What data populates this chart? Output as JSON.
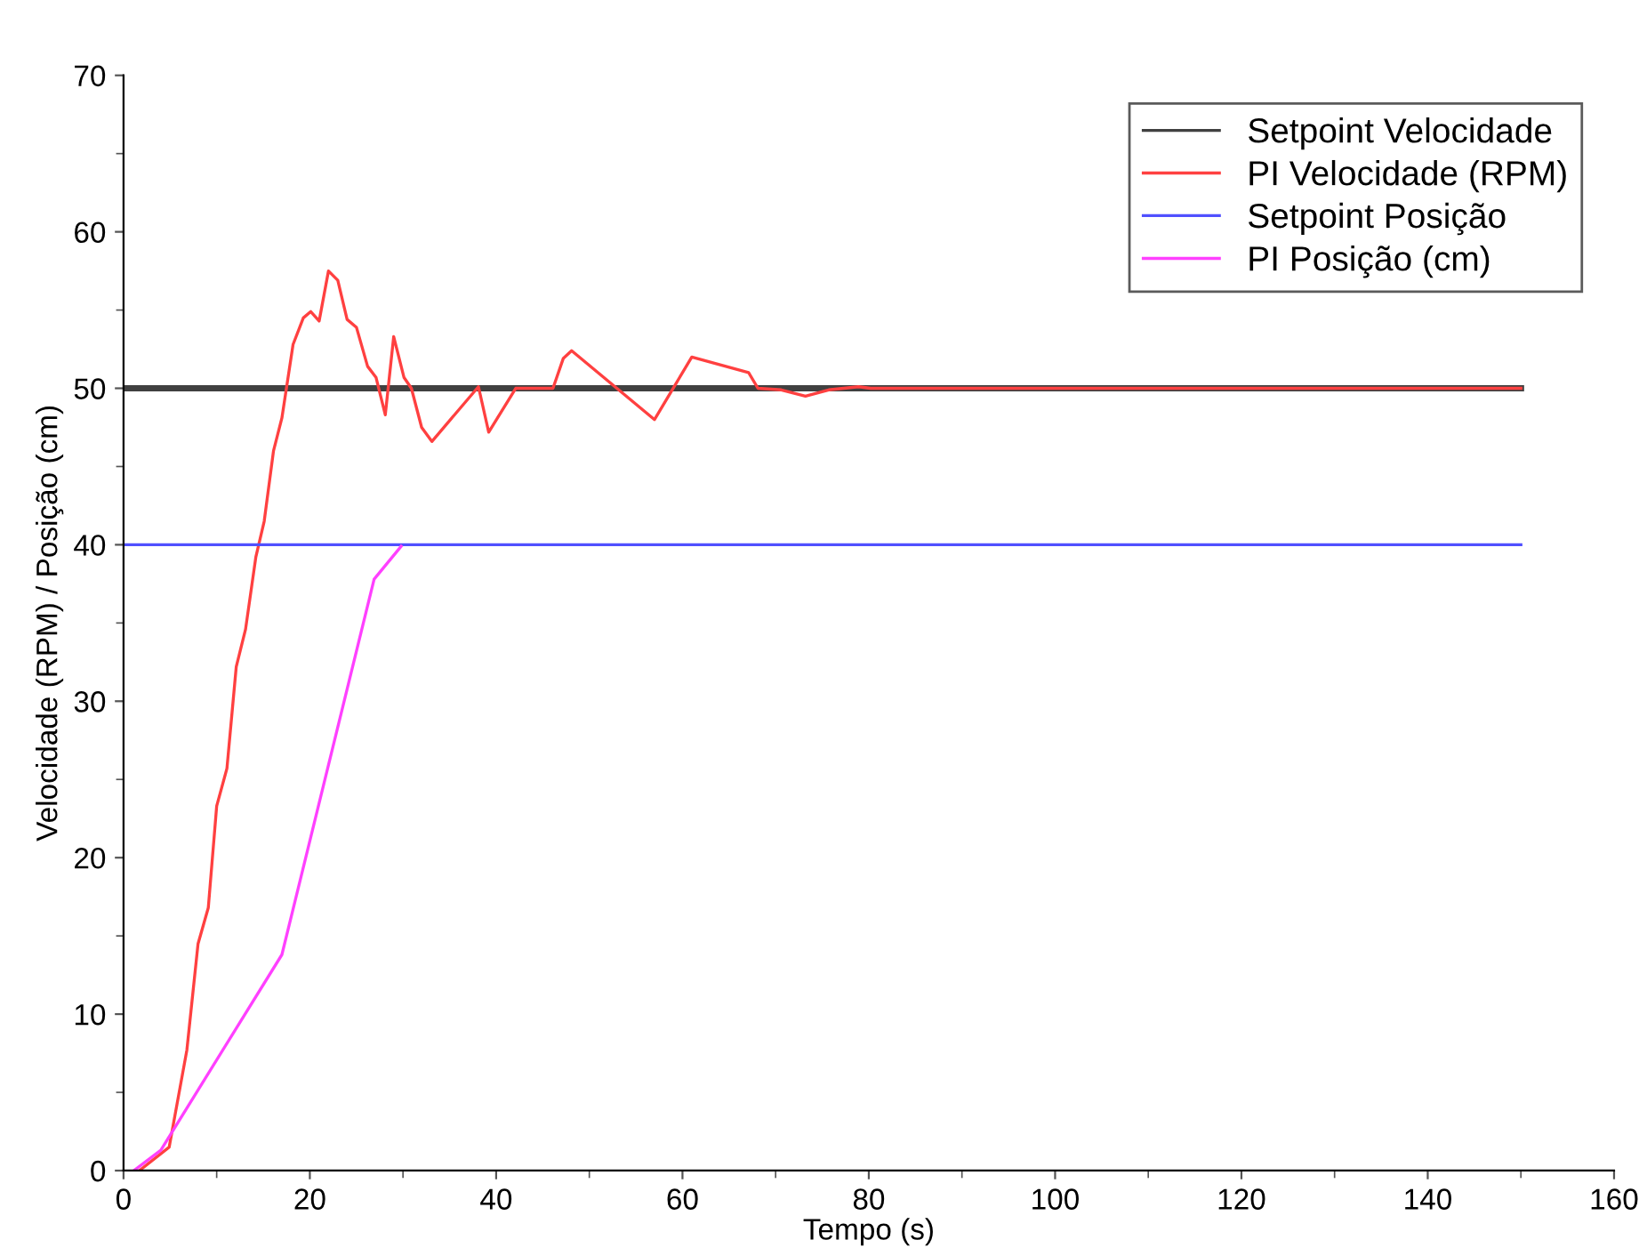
{
  "chart_data": {
    "type": "line",
    "xlabel": "Tempo (s)",
    "ylabel": "Velocidade (RPM) / Posição (cm)",
    "xlim": [
      0,
      160
    ],
    "xticks": [
      0,
      20,
      40,
      60,
      80,
      100,
      120,
      140,
      160
    ],
    "ylim": [
      0,
      70
    ],
    "yticks": [
      0,
      10,
      20,
      30,
      40,
      50,
      60,
      70
    ],
    "grid": false,
    "legend": "top right",
    "line_style": "solid",
    "marker": "none",
    "series": [
      {
        "name": "Setpoint Velocidade",
        "color": "#404040",
        "x": [
          0,
          150
        ],
        "values": [
          50,
          50
        ]
      },
      {
        "name": "PI Velocidade (RPM)",
        "color": "#ff4040",
        "x": [
          1.7,
          4.9,
          6.8,
          8.0,
          9.1,
          10.0,
          11.1,
          12.1,
          13.1,
          14.2,
          15.1,
          16.1,
          17.0,
          18.2,
          19.3,
          20.1,
          21.0,
          22.0,
          23.0,
          24.0,
          25.0,
          26.2,
          27.1,
          28.1,
          29.0,
          30.1,
          30.9,
          32.0,
          33.1,
          38.1,
          39.2,
          42.1,
          46.1,
          47.2,
          48.1,
          57.0,
          61.0,
          67.1,
          68.1,
          70.6,
          73.2,
          75.7,
          78.9,
          80.2,
          82.1,
          150
        ],
        "values": [
          0,
          1.5,
          7.7,
          14.5,
          16.8,
          23.3,
          25.7,
          32.2,
          34.6,
          39.2,
          41.5,
          46.0,
          48.1,
          52.8,
          54.5,
          54.9,
          54.3,
          57.5,
          56.9,
          54.4,
          53.9,
          51.4,
          50.7,
          48.3,
          53.3,
          50.7,
          50.0,
          47.5,
          46.6,
          50.1,
          47.2,
          50.0,
          50.0,
          51.9,
          52.4,
          48.0,
          52.0,
          51.0,
          50.0,
          49.9,
          49.5,
          49.9,
          50.1,
          50.0,
          50.0,
          50.0
        ]
      },
      {
        "name": "Setpoint Posição",
        "color": "#5050ff",
        "x": [
          0,
          150
        ],
        "values": [
          40,
          40
        ]
      },
      {
        "name": "PI Posição (cm)",
        "color": "#ff40ff",
        "x": [
          1.1,
          4.0,
          17.0,
          26.9,
          29.8
        ],
        "values": [
          0,
          1.3,
          13.8,
          37.8,
          39.9
        ]
      }
    ]
  }
}
